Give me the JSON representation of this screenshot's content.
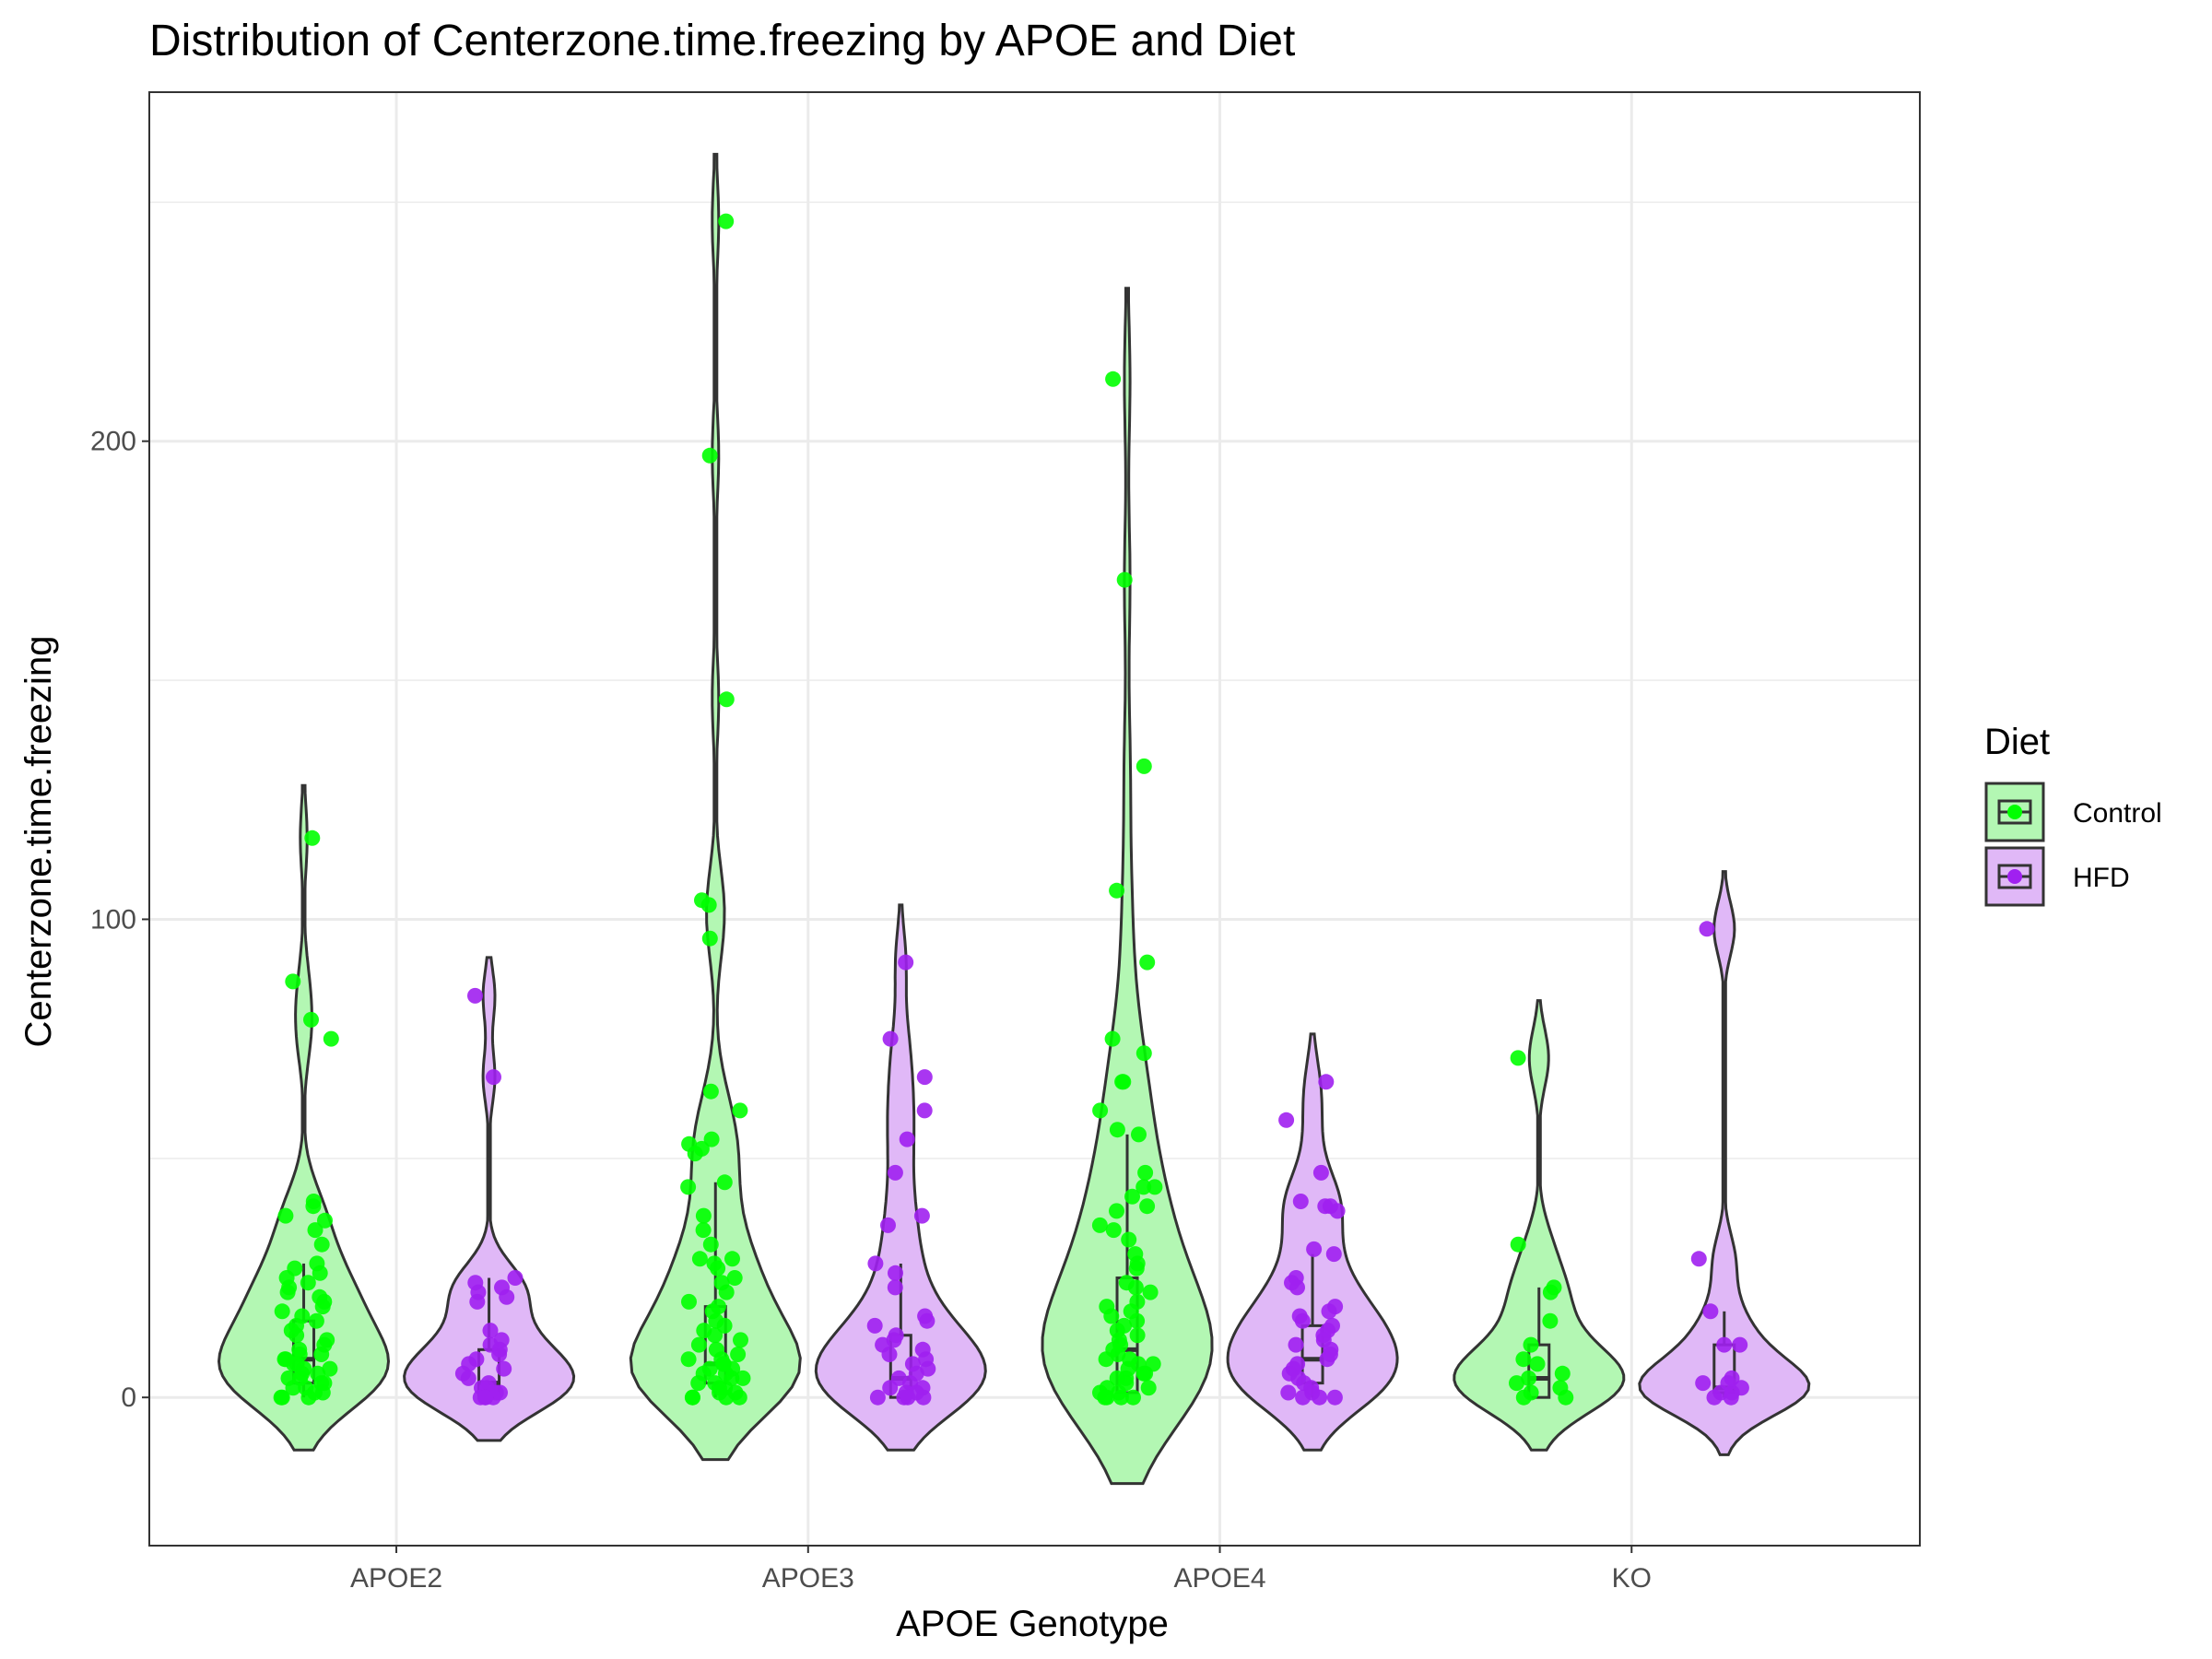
{
  "chart_data": {
    "type": "violin",
    "title": "Distribution of Centerzone.time.freezing by APOE and Diet",
    "xlabel": "APOE Genotype",
    "ylabel": "Centerzone.time.freezing",
    "categories": [
      "APOE2",
      "APOE3",
      "APOE4",
      "KO"
    ],
    "yticks": [
      0,
      100,
      200
    ],
    "ylim": [
      -31,
      273
    ],
    "grid": true,
    "legend": {
      "title": "Diet",
      "position": "right",
      "entries": [
        "Control",
        "HFD"
      ]
    },
    "colors": {
      "Control": {
        "point": "#00ff00",
        "fill": "#b3f7b3"
      },
      "HFD": {
        "point": "#a020f0",
        "fill": "#e0b8f7"
      },
      "outline": "#333333",
      "grid": "#ebebeb",
      "panel_border": "#333333"
    },
    "series": [
      {
        "name": "Control",
        "groups": [
          {
            "category": "APOE2",
            "box": {
              "q1": 3,
              "median": 8,
              "q3": 16,
              "whisker_low": 0,
              "whisker_high": 28
            },
            "violin_range": [
              -11,
              128
            ],
            "points": [
              117,
              87,
              79,
              75,
              41,
              40,
              38,
              37,
              35,
              32,
              28,
              27,
              26,
              25,
              24,
              23,
              22,
              21,
              20,
              19,
              18,
              17,
              16,
              15,
              14,
              13,
              12,
              11,
              10,
              9,
              9,
              8,
              8,
              7,
              7,
              6,
              6,
              5,
              5,
              4,
              4,
              3,
              3,
              2,
              2,
              1,
              1,
              0,
              0,
              0
            ]
          },
          {
            "category": "APOE3",
            "box": {
              "q1": 3,
              "median": 7,
              "q3": 19,
              "whisker_low": 0,
              "whisker_high": 45
            },
            "violin_range": [
              -13,
              260
            ],
            "points": [
              246,
              197,
              146,
              104,
              103,
              96,
              64,
              60,
              54,
              53,
              52,
              51,
              45,
              44,
              38,
              35,
              32,
              29,
              29,
              28,
              27,
              25,
              24,
              22,
              20,
              19,
              18,
              16,
              15,
              14,
              13,
              12,
              11,
              10,
              9,
              8,
              8,
              7,
              7,
              6,
              6,
              5,
              5,
              4,
              4,
              3,
              3,
              2,
              2,
              1,
              1,
              0,
              0,
              0,
              0
            ]
          },
          {
            "category": "APOE4",
            "box": {
              "q1": 1,
              "median": 10,
              "q3": 25,
              "whisker_low": 0,
              "whisker_high": 55
            },
            "violin_range": [
              -18,
              232
            ],
            "points": [
              213,
              171,
              132,
              106,
              91,
              75,
              72,
              66,
              66,
              60,
              56,
              55,
              47,
              44,
              44,
              42,
              40,
              39,
              36,
              35,
              33,
              30,
              28,
              27,
              24,
              23,
              22,
              20,
              19,
              18,
              17,
              16,
              15,
              14,
              13,
              12,
              11,
              10,
              9,
              8,
              8,
              7,
              7,
              6,
              5,
              5,
              4,
              4,
              3,
              2,
              2,
              1,
              1,
              0,
              0,
              0,
              0
            ]
          },
          {
            "category": "KO",
            "box": {
              "q1": 0,
              "median": 4,
              "q3": 11,
              "whisker_low": 0,
              "whisker_high": 23
            },
            "violin_range": [
              -11,
              83
            ],
            "points": [
              71,
              32,
              23,
              22,
              16,
              11,
              8,
              7,
              5,
              4,
              3,
              2,
              1,
              0,
              0
            ]
          }
        ]
      },
      {
        "name": "HFD",
        "groups": [
          {
            "category": "APOE2",
            "box": {
              "q1": 0,
              "median": 3,
              "q3": 10,
              "whisker_low": 0,
              "whisker_high": 25
            },
            "violin_range": [
              -9,
              92
            ],
            "points": [
              84,
              67,
              25,
              24,
              23,
              22,
              21,
              20,
              14,
              12,
              11,
              10,
              9,
              8,
              7,
              6,
              5,
              4,
              3,
              2,
              2,
              1,
              1,
              0,
              0,
              0,
              0
            ]
          },
          {
            "category": "APOE3",
            "box": {
              "q1": 0,
              "median": 4,
              "q3": 13,
              "whisker_low": 0,
              "whisker_high": 28
            },
            "violin_range": [
              -11,
              103
            ],
            "points": [
              91,
              75,
              67,
              60,
              54,
              47,
              38,
              36,
              28,
              26,
              23,
              17,
              16,
              15,
              13,
              12,
              11,
              10,
              9,
              8,
              7,
              6,
              5,
              4,
              3,
              2,
              2,
              1,
              1,
              0,
              0,
              0,
              0
            ]
          },
          {
            "category": "APOE4",
            "box": {
              "q1": 3,
              "median": 8,
              "q3": 15,
              "whisker_low": 0,
              "whisker_high": 30
            },
            "violin_range": [
              -11,
              76
            ],
            "points": [
              66,
              58,
              47,
              41,
              40,
              40,
              39,
              31,
              30,
              25,
              24,
              23,
              19,
              18,
              17,
              16,
              15,
              14,
              13,
              12,
              11,
              10,
              9,
              8,
              7,
              6,
              5,
              4,
              3,
              2,
              1,
              1,
              0,
              0,
              0
            ]
          },
          {
            "category": "KO",
            "box": {
              "q1": 1,
              "median": 2,
              "q3": 11,
              "whisker_low": 0,
              "whisker_high": 18
            },
            "violin_range": [
              -12,
              110
            ],
            "points": [
              98,
              29,
              18,
              11,
              11,
              4,
              3,
              3,
              2,
              1,
              1,
              0,
              0
            ]
          }
        ]
      }
    ]
  }
}
